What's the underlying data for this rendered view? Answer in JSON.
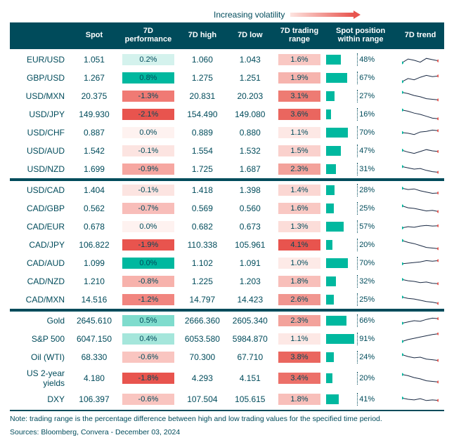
{
  "volatility_label": "Increasing volatility",
  "arrow_gradient": [
    "#fde4e0",
    "#e8544e"
  ],
  "headers": {
    "name": "",
    "spot": "Spot",
    "perf": "7D performance",
    "high": "7D high",
    "low": "7D low",
    "range": "7D trading range",
    "pos": "Spot position within range",
    "trend": "7D trend"
  },
  "colors": {
    "header_bg": "#004b5b",
    "header_fg": "#ffffff",
    "text": "#004b5b",
    "bar": "#00b89f",
    "spark_line": "#1a2a44",
    "spark_start": "#00b89f",
    "spark_end": "#e8544e",
    "perf_scale": {
      "neg3": "#e8544e",
      "neg2": "#f07a74",
      "neg1": "#f8bdb9",
      "zero": "#fef2f0",
      "pos1": "#d4f2ed",
      "pos2": "#7fdccd",
      "pos3": "#00b89f"
    },
    "range_scale": {
      "r1": "#fde8e5",
      "r2": "#f9c8c3",
      "r3": "#f3a29b",
      "r4": "#ee7b73",
      "r5": "#e8544e"
    }
  },
  "footnote": "Note: trading range is the percentage difference between high and low trading values for the specified time period.",
  "sources": "Sources: Bloomberg, Convera - December 03, 2024",
  "groups": [
    {
      "rows": [
        {
          "name": "EUR/USD",
          "spot": "1.051",
          "perf": "0.2%",
          "perf_color": "#d4f2ed",
          "high": "1.060",
          "low": "1.043",
          "range": "1.6%",
          "range_color": "#f9c8c3",
          "pos_pct": 48,
          "spark": [
            0.25,
            0.55,
            0.45,
            0.3,
            0.6,
            0.5,
            0.4
          ]
        },
        {
          "name": "GBP/USD",
          "spot": "1.267",
          "perf": "0.8%",
          "perf_color": "#00b89f",
          "high": "1.275",
          "low": "1.251",
          "range": "1.9%",
          "range_color": "#f6b4ae",
          "pos_pct": 67,
          "spark": [
            0.2,
            0.45,
            0.35,
            0.55,
            0.7,
            0.6,
            0.65
          ]
        },
        {
          "name": "USD/MXN",
          "spot": "20.375",
          "perf": "-1.3%",
          "perf_color": "#f07a74",
          "high": "20.831",
          "low": "20.203",
          "range": "3.1%",
          "range_color": "#ee7b73",
          "pos_pct": 27,
          "spark": [
            0.8,
            0.7,
            0.55,
            0.45,
            0.3,
            0.25,
            0.2
          ]
        },
        {
          "name": "USD/JPY",
          "spot": "149.930",
          "perf": "-2.1%",
          "perf_color": "#e8544e",
          "high": "154.490",
          "low": "149.080",
          "range": "3.6%",
          "range_color": "#ea665f",
          "pos_pct": 16,
          "spark": [
            0.85,
            0.75,
            0.6,
            0.5,
            0.35,
            0.2,
            0.15
          ]
        },
        {
          "name": "USD/CHF",
          "spot": "0.887",
          "perf": "0.0%",
          "perf_color": "#fef2f0",
          "high": "0.889",
          "low": "0.880",
          "range": "1.1%",
          "range_color": "#fde8e5",
          "pos_pct": 70,
          "spark": [
            0.5,
            0.45,
            0.35,
            0.55,
            0.6,
            0.7,
            0.65
          ]
        },
        {
          "name": "USD/AUD",
          "spot": "1.542",
          "perf": "-0.1%",
          "perf_color": "#fce4e1",
          "high": "1.554",
          "low": "1.532",
          "range": "1.5%",
          "range_color": "#fad1cd",
          "pos_pct": 47,
          "spark": [
            0.55,
            0.4,
            0.3,
            0.45,
            0.6,
            0.5,
            0.45
          ]
        },
        {
          "name": "USD/NZD",
          "spot": "1.699",
          "perf": "-0.9%",
          "perf_color": "#f6a7a1",
          "high": "1.725",
          "low": "1.687",
          "range": "2.3%",
          "range_color": "#f3a29b",
          "pos_pct": 31,
          "spark": [
            0.7,
            0.6,
            0.5,
            0.55,
            0.4,
            0.3,
            0.25
          ]
        }
      ]
    },
    {
      "rows": [
        {
          "name": "USD/CAD",
          "spot": "1.404",
          "perf": "-0.1%",
          "perf_color": "#fce4e1",
          "high": "1.418",
          "low": "1.398",
          "range": "1.4%",
          "range_color": "#fbd7d3",
          "pos_pct": 28,
          "spark": [
            0.65,
            0.55,
            0.6,
            0.45,
            0.35,
            0.25,
            0.28
          ]
        },
        {
          "name": "CAD/GBP",
          "spot": "0.562",
          "perf": "-0.7%",
          "perf_color": "#f8bdb9",
          "high": "0.569",
          "low": "0.560",
          "range": "1.6%",
          "range_color": "#f9c8c3",
          "pos_pct": 25,
          "spark": [
            0.7,
            0.55,
            0.5,
            0.4,
            0.3,
            0.35,
            0.25
          ]
        },
        {
          "name": "CAD/EUR",
          "spot": "0.678",
          "perf": "0.0%",
          "perf_color": "#fef2f0",
          "high": "0.682",
          "low": "0.673",
          "range": "1.3%",
          "range_color": "#fcddd9",
          "pos_pct": 57,
          "spark": [
            0.4,
            0.5,
            0.45,
            0.55,
            0.6,
            0.55,
            0.57
          ]
        },
        {
          "name": "CAD/JPY",
          "spot": "106.822",
          "perf": "-1.9%",
          "perf_color": "#e8544e",
          "high": "110.338",
          "low": "105.961",
          "range": "4.1%",
          "range_color": "#e8544e",
          "pos_pct": 20,
          "spark": [
            0.85,
            0.7,
            0.6,
            0.45,
            0.3,
            0.25,
            0.2
          ]
        },
        {
          "name": "CAD/AUD",
          "spot": "1.099",
          "perf": "0.0%",
          "perf_color": "#00b89f",
          "high": "1.102",
          "low": "1.091",
          "range": "1.0%",
          "range_color": "#fdeae7",
          "pos_pct": 70,
          "spark": [
            0.45,
            0.5,
            0.55,
            0.6,
            0.7,
            0.65,
            0.7
          ]
        },
        {
          "name": "CAD/NZD",
          "spot": "1.210",
          "perf": "-0.8%",
          "perf_color": "#f7b2ac",
          "high": "1.225",
          "low": "1.203",
          "range": "1.8%",
          "range_color": "#f8bfba",
          "pos_pct": 32,
          "spark": [
            0.65,
            0.55,
            0.5,
            0.4,
            0.45,
            0.35,
            0.32
          ]
        },
        {
          "name": "CAD/MXN",
          "spot": "14.516",
          "perf": "-1.2%",
          "perf_color": "#f1857f",
          "high": "14.797",
          "low": "14.423",
          "range": "2.6%",
          "range_color": "#f19690",
          "pos_pct": 25,
          "spark": [
            0.7,
            0.6,
            0.55,
            0.45,
            0.35,
            0.3,
            0.2
          ]
        }
      ]
    },
    {
      "rows": [
        {
          "name": "Gold",
          "spot": "2645.610",
          "perf": "0.5%",
          "perf_color": "#7fdccd",
          "high": "2666.360",
          "low": "2605.340",
          "range": "2.3%",
          "range_color": "#f3a29b",
          "pos_pct": 66,
          "spark": [
            0.3,
            0.4,
            0.5,
            0.45,
            0.6,
            0.7,
            0.66
          ]
        },
        {
          "name": "S&P 500",
          "spot": "6047.150",
          "perf": "0.4%",
          "perf_color": "#a5e6db",
          "high": "6053.580",
          "low": "5984.870",
          "range": "1.1%",
          "range_color": "#fde8e5",
          "pos_pct": 91,
          "spark": [
            0.3,
            0.45,
            0.55,
            0.65,
            0.75,
            0.85,
            0.91
          ]
        },
        {
          "name": "Oil (WTI)",
          "spot": "68.330",
          "perf": "-0.6%",
          "perf_color": "#f9c5c0",
          "high": "70.300",
          "low": "67.710",
          "range": "3.8%",
          "range_color": "#ea665f",
          "pos_pct": 24,
          "spark": [
            0.7,
            0.55,
            0.45,
            0.5,
            0.35,
            0.3,
            0.24
          ]
        },
        {
          "name": "US 2-year yields",
          "spot": "4.180",
          "perf": "-1.8%",
          "perf_color": "#e8544e",
          "high": "4.293",
          "low": "4.151",
          "range": "3.4%",
          "range_color": "#ec7069",
          "pos_pct": 20,
          "spark": [
            0.8,
            0.7,
            0.55,
            0.45,
            0.3,
            0.25,
            0.2
          ]
        },
        {
          "name": "DXY",
          "spot": "106.397",
          "perf": "-0.6%",
          "perf_color": "#f9c5c0",
          "high": "107.504",
          "low": "105.615",
          "range": "1.8%",
          "range_color": "#f8bfba",
          "pos_pct": 41,
          "spark": [
            0.6,
            0.5,
            0.45,
            0.55,
            0.4,
            0.45,
            0.41
          ]
        }
      ]
    }
  ]
}
